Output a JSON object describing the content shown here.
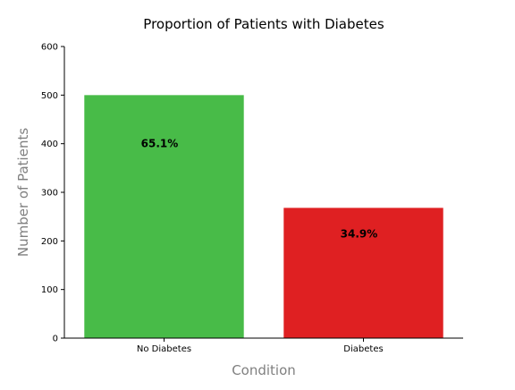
{
  "chart_data": {
    "type": "bar",
    "title": "Proportion of Patients with Diabetes",
    "xlabel": "Condition",
    "ylabel": "Number of Patients",
    "categories": [
      "No Diabetes",
      "Diabetes"
    ],
    "values": [
      500,
      268
    ],
    "bar_labels": [
      "65.1%",
      "34.9%"
    ],
    "colors": [
      "#48bb48",
      "#df2022"
    ],
    "ylim": [
      0,
      600
    ],
    "yticks": [
      0,
      100,
      200,
      300,
      400,
      500,
      600
    ],
    "grid": false,
    "legend": "none"
  }
}
